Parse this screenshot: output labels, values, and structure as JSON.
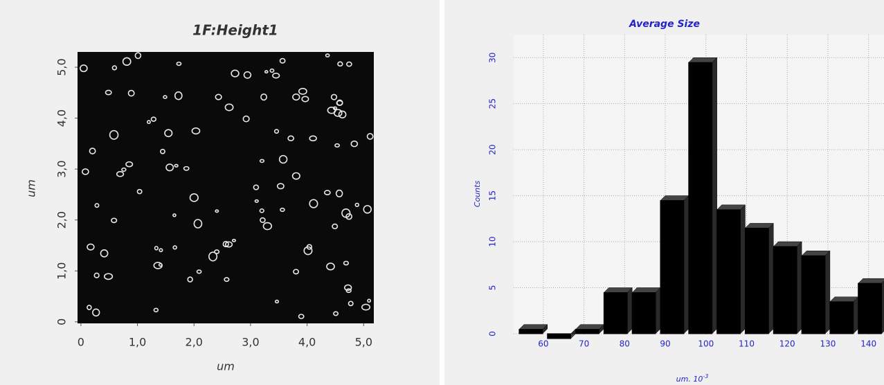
{
  "chart_data": [
    {
      "type": "image",
      "title": "1F:Height1",
      "xlabel": "um",
      "ylabel": "um",
      "xlim": [
        -0.06,
        5.18
      ],
      "ylim": [
        -0.03,
        5.3
      ],
      "xticks": [
        0,
        {
          "value": 1,
          "label": "1,0"
        },
        {
          "value": 2,
          "label": "2,0"
        },
        {
          "value": 3,
          "label": "3,0"
        },
        {
          "value": 4,
          "label": "4,0"
        },
        {
          "value": 5,
          "label": "5,0"
        }
      ],
      "yticks": [
        0,
        {
          "value": 1,
          "label": "1,0"
        },
        {
          "value": 2,
          "label": "2,0"
        },
        {
          "value": 3,
          "label": "3,0"
        },
        {
          "value": 4,
          "label": "4,0"
        },
        {
          "value": 5,
          "label": "5,0"
        }
      ]
    },
    {
      "type": "histogram",
      "title": "Average Size",
      "xlabel": "um. 10",
      "xlabel_exponent": "-3",
      "ylabel": "Counts",
      "bins": [
        54.05,
        61.0,
        67.95,
        74.9,
        81.85,
        88.8,
        95.75,
        102.7,
        109.65,
        116.6,
        123.55,
        130.5,
        137.45,
        144.4
      ],
      "values": [
        1,
        0,
        1,
        5,
        5,
        15,
        30,
        14,
        12,
        10,
        9,
        4,
        6
      ],
      "color": "#000000",
      "xlim": [
        52.7,
        143.8
      ],
      "ylim": [
        -0.08,
        32.5
      ],
      "xticks": [
        60,
        70,
        80,
        90,
        100,
        110,
        120,
        130,
        140
      ],
      "yticks": [
        0,
        5,
        10,
        15,
        20,
        25,
        30
      ],
      "grid": true
    }
  ]
}
